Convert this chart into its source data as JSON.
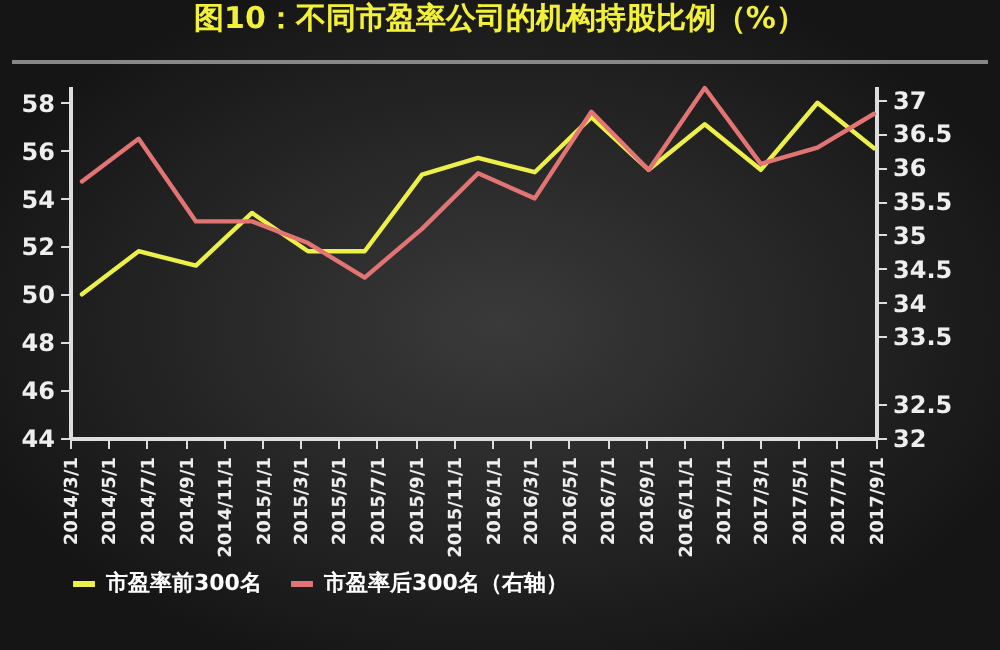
{
  "chart_data": {
    "type": "line",
    "title": "图10：不同市盈率公司的机构持股比例（%）",
    "x": [
      "2014-03-20",
      "2014-06-18",
      "2014-09-17",
      "2014-12-15",
      "2015-03-14",
      "2015-06-12",
      "2015-09-11",
      "2015-12-09",
      "2016-03-08",
      "2016-06-06",
      "2016-09-05",
      "2016-12-03",
      "2017-03-02",
      "2017-05-31",
      "2017-08-29"
    ],
    "series": [
      {
        "name": "市盈率前300名",
        "color": "#eef04a",
        "values": [
          50.0,
          51.8,
          51.2,
          53.4,
          51.8,
          51.8,
          55.0,
          55.7,
          55.1,
          57.4,
          55.2,
          57.1,
          55.2,
          58.0,
          56.1
        ]
      },
      {
        "name": "市盈率后300名（右轴）",
        "color": "#e37474",
        "axis": "y2",
        "values": [
          35.79,
          36.42,
          35.2,
          35.2,
          34.88,
          34.37,
          35.09,
          35.91,
          35.54,
          36.82,
          35.96,
          37.17,
          36.05,
          36.29,
          36.79
        ]
      }
    ],
    "xlim": [
      "2014-03-01",
      "2017-09-01"
    ],
    "xticks": [
      {
        "value": "2014-03-01",
        "label": "2014/3/1"
      },
      {
        "value": "2014-05-01",
        "label": "2014/5/1"
      },
      {
        "value": "2014-07-01",
        "label": "2014/7/1"
      },
      {
        "value": "2014-09-01",
        "label": "2014/9/1"
      },
      {
        "value": "2014-11-01",
        "label": "2014/11/1"
      },
      {
        "value": "2015-01-01",
        "label": "2015/1/1"
      },
      {
        "value": "2015-03-01",
        "label": "2015/3/1"
      },
      {
        "value": "2015-05-01",
        "label": "2015/5/1"
      },
      {
        "value": "2015-07-01",
        "label": "2015/7/1"
      },
      {
        "value": "2015-09-01",
        "label": "2015/9/1"
      },
      {
        "value": "2015-11-01",
        "label": "2015/11/1"
      },
      {
        "value": "2016-01-01",
        "label": "2016/1/1"
      },
      {
        "value": "2016-03-01",
        "label": "2016/3/1"
      },
      {
        "value": "2016-05-01",
        "label": "2016/5/1"
      },
      {
        "value": "2016-07-01",
        "label": "2016/7/1"
      },
      {
        "value": "2016-09-01",
        "label": "2016/9/1"
      },
      {
        "value": "2016-11-01",
        "label": "2016/11/1"
      },
      {
        "value": "2017-01-01",
        "label": "2017/1/1"
      },
      {
        "value": "2017-03-01",
        "label": "2017/3/1"
      },
      {
        "value": "2017-05-01",
        "label": "2017/5/1"
      },
      {
        "value": "2017-07-01",
        "label": "2017/7/1"
      },
      {
        "value": "2017-09-01",
        "label": "2017/9/1"
      }
    ],
    "ylim": [
      44,
      58.7
    ],
    "yticks": [
      44,
      46,
      48,
      50,
      52,
      54,
      56,
      58
    ],
    "y2lim": [
      32,
      37.2
    ],
    "y2ticks": [
      32,
      32.5,
      33.5,
      34,
      34.5,
      35,
      35.5,
      36,
      36.5,
      37
    ],
    "legend": "bottom",
    "grid": false,
    "marker": "none",
    "line_style": "solid"
  }
}
